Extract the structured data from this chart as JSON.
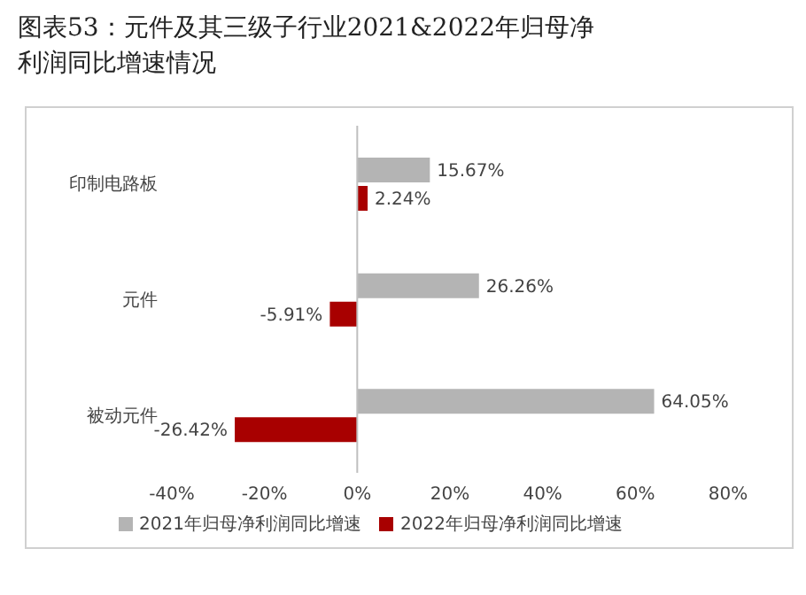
{
  "chart_data": {
    "type": "bar",
    "orientation": "horizontal",
    "title": "图表53：元件及其三级子行业2021&2022年归母净利润同比增速情况",
    "categories": [
      "印制电路板",
      "元件",
      "被动元件"
    ],
    "series": [
      {
        "name": "2021年归母净利润同比增速",
        "color": "#b4b4b4",
        "values": [
          15.67,
          26.26,
          64.05
        ],
        "value_labels": [
          "15.67%",
          "26.26%",
          "64.05%"
        ]
      },
      {
        "name": "2022年归母净利润同比增速",
        "color": "#a80000",
        "values": [
          2.24,
          -5.91,
          -26.42
        ],
        "value_labels": [
          "2.24%",
          "-5.91%",
          "-26.42%"
        ]
      }
    ],
    "xlim": [
      -40,
      80
    ],
    "xticks": [
      {
        "value": -40,
        "label": "-40%"
      },
      {
        "value": -20,
        "label": "-20%"
      },
      {
        "value": 0,
        "label": "0%"
      },
      {
        "value": 20,
        "label": "20%"
      },
      {
        "value": 40,
        "label": "40%"
      },
      {
        "value": 60,
        "label": "60%"
      },
      {
        "value": 80,
        "label": "80%"
      }
    ],
    "ref_lines": [
      {
        "axis": "x",
        "value": 0,
        "color": "#bfbfbf"
      }
    ],
    "grid": false,
    "legend": "bottom"
  }
}
